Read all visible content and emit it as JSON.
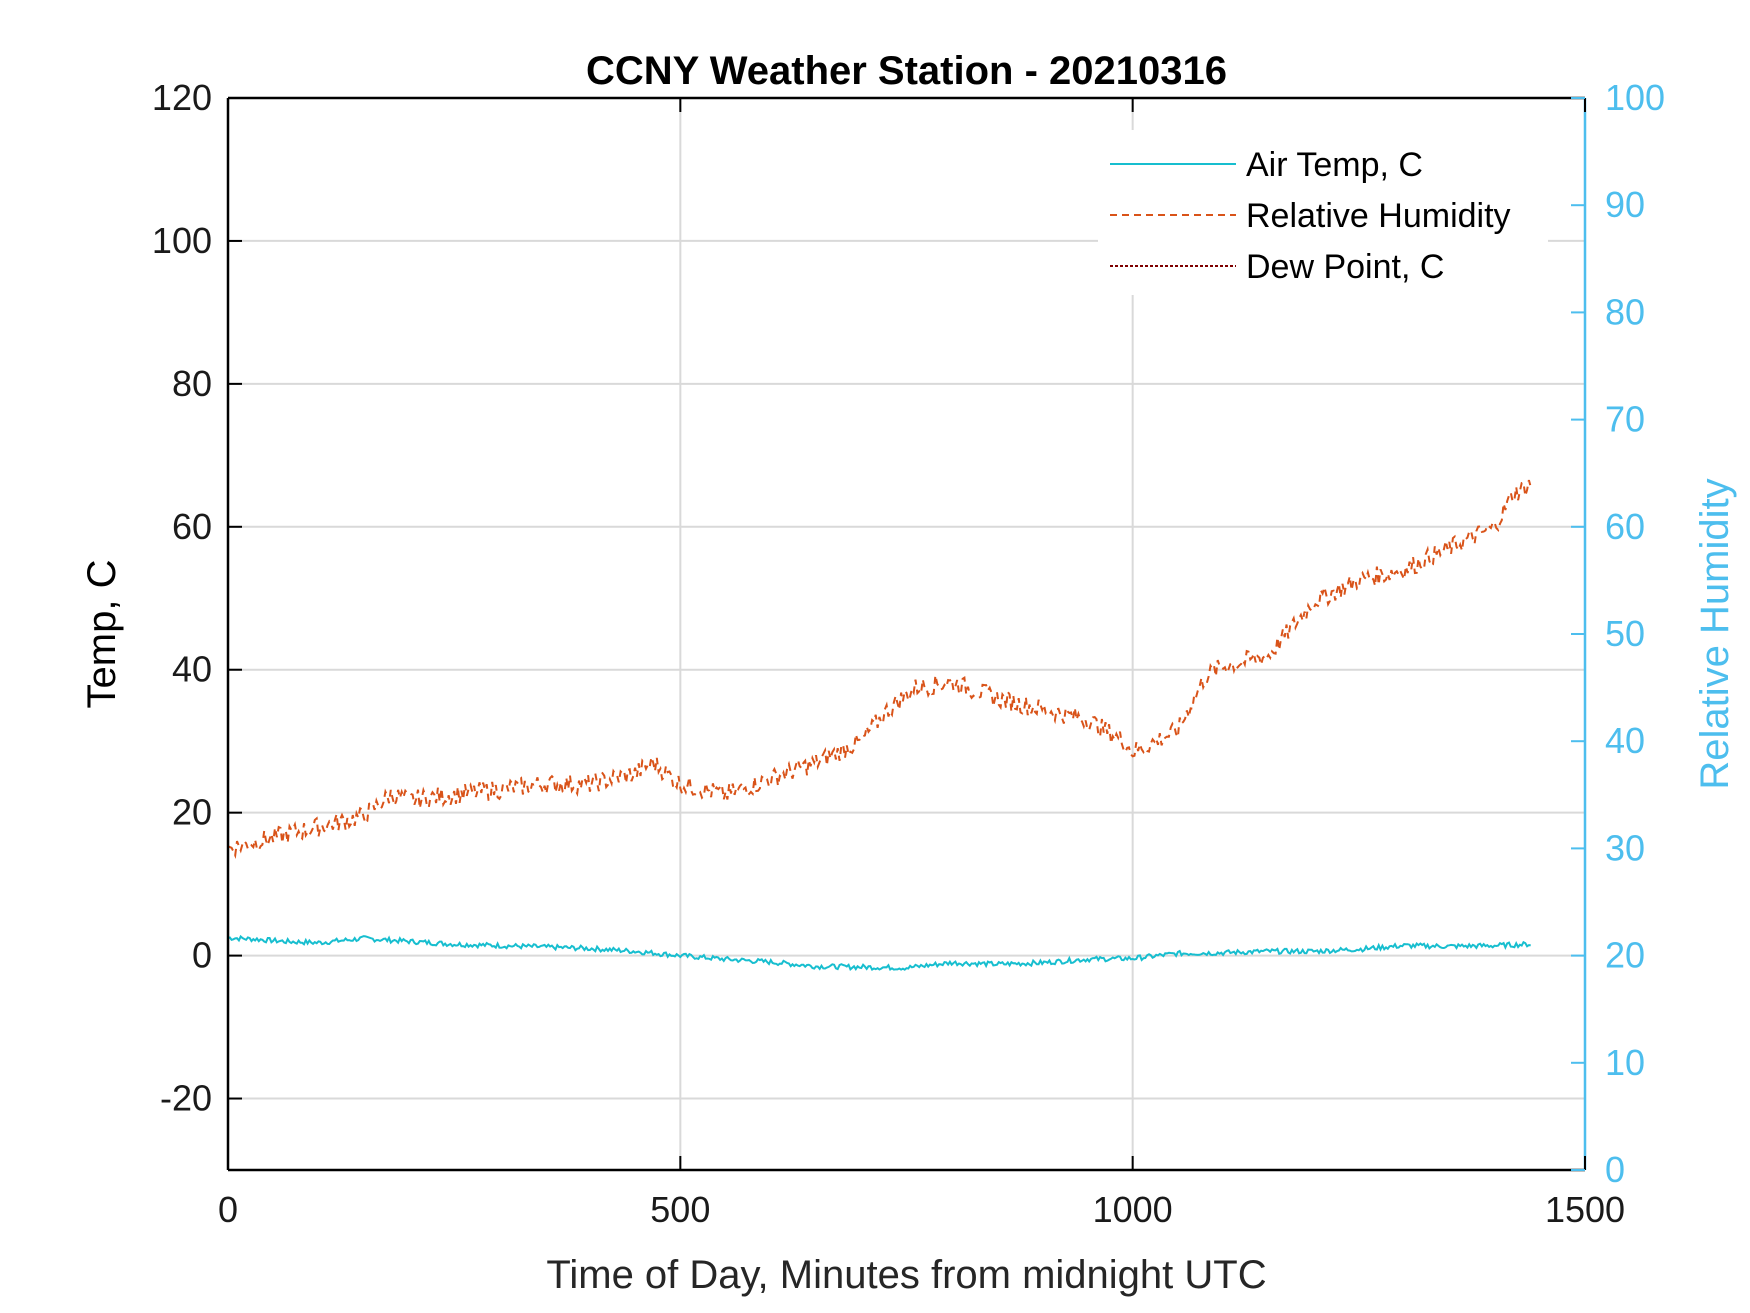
{
  "colors": {
    "air_temp": "#17becf",
    "relative_humidity": "#d95319",
    "dew_point": "#7e0000",
    "right_axis": "#4dbeee",
    "grid": "#d9d9d9",
    "axis": "#000000"
  },
  "chart_data": {
    "type": "line",
    "title": "CCNY Weather Station - 20210316",
    "xlabel": "Time of Day, Minutes from midnight UTC",
    "ylabel_left": "Temp, C",
    "ylabel_right": "Relative Humidity",
    "xlim": [
      0,
      1500
    ],
    "ylim_left": [
      -30,
      120
    ],
    "ylim_right": [
      0,
      100
    ],
    "x_ticks": [
      "0",
      "500",
      "1000",
      "1500"
    ],
    "y_ticks_left": [
      "-20",
      "0",
      "20",
      "40",
      "60",
      "80",
      "100",
      "120"
    ],
    "y_ticks_right": [
      "0",
      "10",
      "20",
      "30",
      "40",
      "50",
      "60",
      "70",
      "80",
      "90",
      "100"
    ],
    "grid": true,
    "legend_position": "top-right",
    "series": [
      {
        "name": "Air Temp, C",
        "axis": "left",
        "style": "solid",
        "x": [
          0,
          30,
          60,
          100,
          150,
          200,
          250,
          300,
          350,
          400,
          450,
          500,
          550,
          600,
          650,
          700,
          750,
          800,
          850,
          900,
          950,
          1000,
          1050,
          1100,
          1150,
          1200,
          1250,
          1300,
          1350,
          1400,
          1440
        ],
        "y": [
          2.5,
          2.3,
          2,
          1.8,
          2.4,
          2,
          1.6,
          1.4,
          1.2,
          1,
          0.6,
          0,
          -0.5,
          -0.9,
          -1.5,
          -1.6,
          -1.7,
          -1,
          -1.2,
          -1,
          -0.5,
          -0.4,
          0.3,
          0.4,
          0.6,
          0.6,
          0.9,
          1.4,
          1.3,
          1.4,
          1.6
        ]
      },
      {
        "name": "Relative Humidity",
        "axis": "right",
        "style": "dashed",
        "x": [
          0,
          50,
          100,
          150,
          180,
          200,
          250,
          300,
          350,
          400,
          450,
          470,
          500,
          550,
          600,
          650,
          700,
          730,
          760,
          800,
          850,
          900,
          950,
          990,
          1000,
          1050,
          1080,
          1100,
          1150,
          1200,
          1250,
          1300,
          1350,
          1400,
          1420,
          1440
        ],
        "y": [
          30,
          31,
          32,
          33,
          35,
          34.5,
          35,
          35.5,
          36,
          36,
          37,
          38,
          36,
          35,
          36.5,
          38,
          40,
          43,
          45,
          45.5,
          44,
          43,
          42,
          40,
          39,
          41,
          46,
          47,
          48,
          53,
          55,
          56,
          58,
          60,
          63,
          64
        ]
      },
      {
        "name": "Dew Point, C",
        "axis": "left",
        "style": "dotted",
        "x": [],
        "y": []
      }
    ]
  }
}
